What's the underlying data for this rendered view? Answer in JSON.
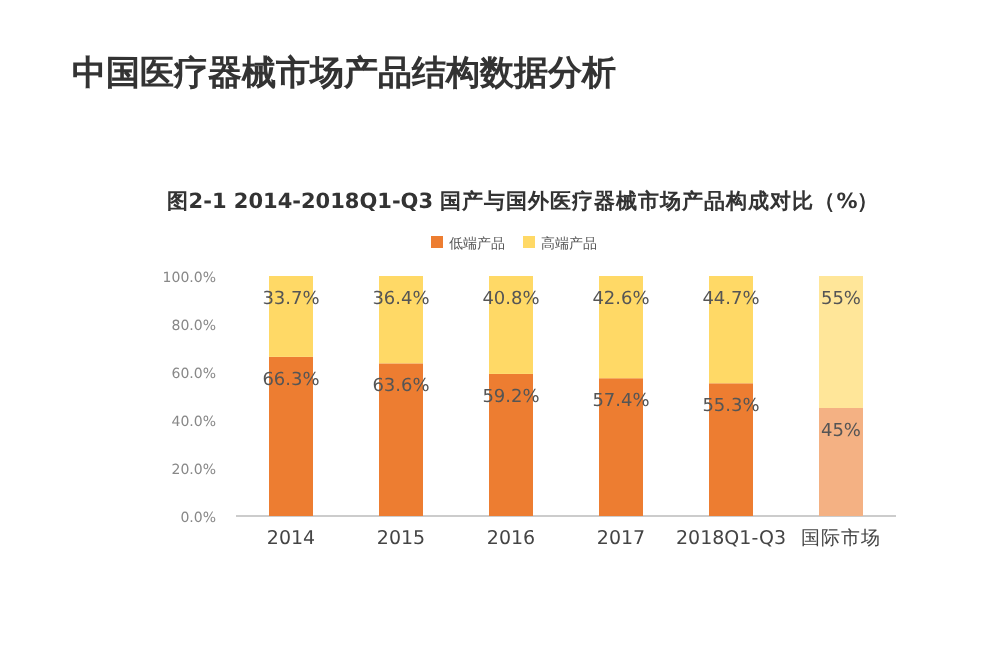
{
  "chart_data": {
    "type": "bar",
    "title": "中国医疗器械市场产品结构数据分析",
    "subtitle": "图2-1 2014-2018Q1-Q3 国产与国外医疗器械市场产品构成对比（%）",
    "categories": [
      "2014",
      "2015",
      "2016",
      "2017",
      "2018Q1-Q3",
      "国际市场"
    ],
    "stacked": true,
    "legend": "top",
    "ylim": [
      0,
      100
    ],
    "yticks": [
      {
        "value": 0,
        "label": "0.0%"
      },
      {
        "value": 20,
        "label": "20.0%"
      },
      {
        "value": 40,
        "label": "40.0%"
      },
      {
        "value": 60,
        "label": "60.0%"
      },
      {
        "value": 80,
        "label": "80.0%"
      },
      {
        "value": 100,
        "label": "100.0%"
      }
    ],
    "series": [
      {
        "name": "低端产品",
        "color": "#ed7d31",
        "colors": [
          "#ed7d31",
          "#ed7d31",
          "#ed7d31",
          "#ed7d31",
          "#ed7d31",
          "#f4b183"
        ],
        "values": [
          66.3,
          63.6,
          59.2,
          57.4,
          55.3,
          45
        ],
        "value_labels": [
          "66.3%",
          "63.6%",
          "59.2%",
          "57.4%",
          "55.3%",
          "45%"
        ]
      },
      {
        "name": "高端产品",
        "color": "#ffd966",
        "colors": [
          "#ffd966",
          "#ffd966",
          "#ffd966",
          "#ffd966",
          "#ffd966",
          "#ffe699"
        ],
        "values": [
          33.7,
          36.4,
          40.8,
          42.6,
          44.7,
          55
        ],
        "value_labels": [
          "33.7%",
          "36.4%",
          "40.8%",
          "42.6%",
          "44.7%",
          "55%"
        ]
      }
    ]
  }
}
